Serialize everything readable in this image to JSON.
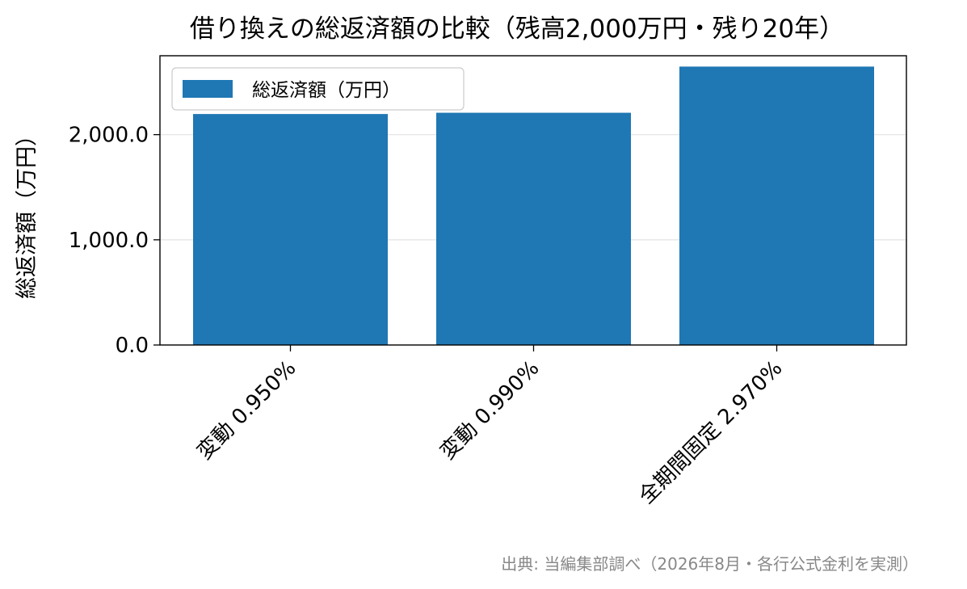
{
  "chart_data": {
    "type": "bar",
    "title": "借り換えの総返済額の比較（残高2,000万円・残り20年）",
    "xlabel": "",
    "ylabel": "総返済額（万円）",
    "categories": [
      "変動 0.950%",
      "変動 0.990%",
      "全期間固定 2.970%"
    ],
    "series": [
      {
        "name": "総返済額（万円）",
        "values": [
          2196,
          2208,
          2647
        ],
        "color": "#1f77b4"
      }
    ],
    "ylim": [
      0,
      2750
    ],
    "yticks": [
      0,
      1000,
      2000
    ],
    "ytick_labels": [
      "0.0",
      "1,000.0",
      "2,000.0"
    ],
    "grid": "y",
    "legend": "top-left"
  },
  "footer": {
    "source": "出典: 当編集部調べ（2026年8月・各行公式金利を実測）"
  }
}
